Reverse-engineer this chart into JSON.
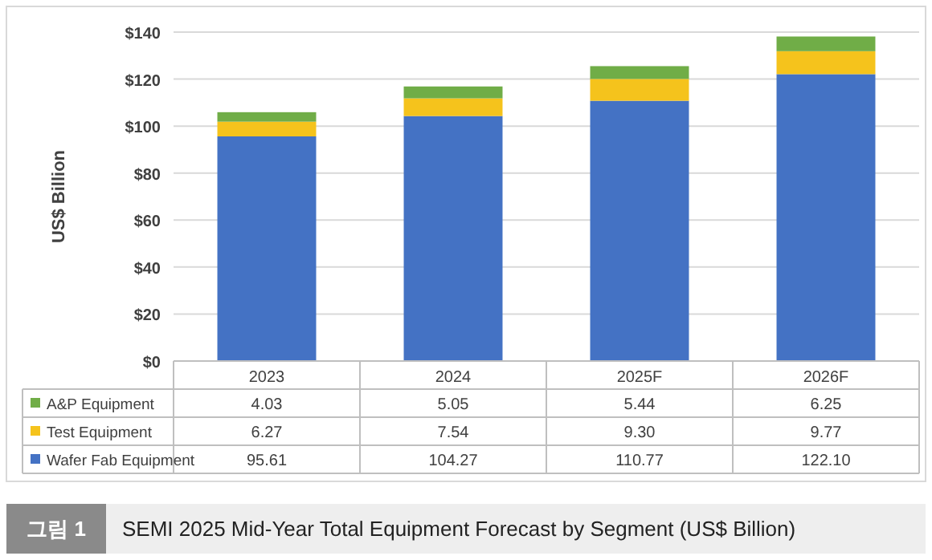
{
  "chart_data": {
    "type": "bar",
    "stacked": true,
    "title": "SEMI 2025 Mid-Year Total Equipment Forecast by Segment (US$ Billion)",
    "annotations": [
      "그림 1"
    ],
    "ylabel": "US$ Billion",
    "categories": [
      "2023",
      "2024",
      "2025F",
      "2026F"
    ],
    "series": [
      {
        "name": "Wafer Fab Equipment",
        "color": "#4472c4",
        "values": [
          95.61,
          104.27,
          110.77,
          122.1
        ],
        "value_labels": [
          "95.61",
          "104.27",
          "110.77",
          "122.10"
        ]
      },
      {
        "name": "Test Equipment",
        "color": "#f5c31c",
        "values": [
          6.27,
          7.54,
          9.3,
          9.77
        ],
        "value_labels": [
          "6.27",
          "7.54",
          "9.30",
          "9.77"
        ]
      },
      {
        "name": "A&P Equipment",
        "color": "#70ad47",
        "values": [
          4.03,
          5.05,
          5.44,
          6.25
        ],
        "value_labels": [
          "4.03",
          "5.05",
          "5.44",
          "6.25"
        ]
      }
    ],
    "ylim": [
      0,
      140
    ],
    "yticks": [
      {
        "value": 0,
        "label": "$0"
      },
      {
        "value": 20,
        "label": "$20"
      },
      {
        "value": 40,
        "label": "$40"
      },
      {
        "value": 60,
        "label": "$60"
      },
      {
        "value": 80,
        "label": "$80"
      },
      {
        "value": 100,
        "label": "$100"
      },
      {
        "value": 120,
        "label": "$120"
      },
      {
        "value": 140,
        "label": "$140"
      }
    ],
    "grid": "y",
    "legend": "bottom"
  }
}
